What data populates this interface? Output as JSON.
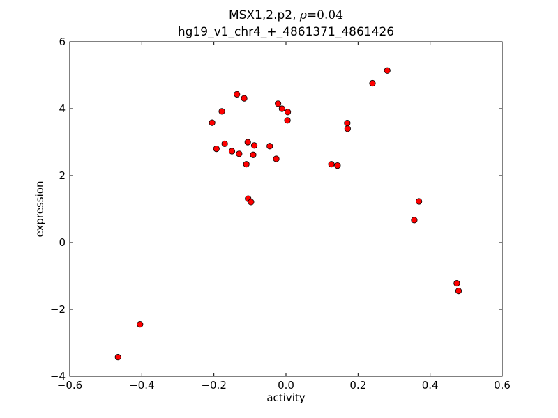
{
  "chart_data": {
    "type": "scatter",
    "title": {
      "line1_prefix": "MSX1,2.p2, ",
      "rho_symbol": "ρ",
      "rho_value": "=0.04",
      "line2": "hg19_v1_chr4_+_4861371_4861426"
    },
    "xlabel": "activity",
    "ylabel": "expression",
    "xlim": [
      -0.6,
      0.6
    ],
    "ylim": [
      -4,
      6
    ],
    "xticks": [
      -0.6,
      -0.4,
      -0.2,
      0.0,
      0.2,
      0.4,
      0.6
    ],
    "xtick_labels": [
      "−0.6",
      "−0.4",
      "−0.2",
      "0.0",
      "0.2",
      "0.4",
      "0.6"
    ],
    "yticks": [
      -4,
      -2,
      0,
      2,
      4,
      6
    ],
    "ytick_labels": [
      "−4",
      "−2",
      "0",
      "2",
      "4",
      "6"
    ],
    "grid": false,
    "marker_color": "#ff0000",
    "marker_edge_color": "#000000",
    "points": [
      {
        "x": -0.466,
        "y": -3.43
      },
      {
        "x": -0.405,
        "y": -2.45
      },
      {
        "x": -0.205,
        "y": 3.58
      },
      {
        "x": -0.193,
        "y": 2.8
      },
      {
        "x": -0.178,
        "y": 3.92
      },
      {
        "x": -0.17,
        "y": 2.95
      },
      {
        "x": -0.15,
        "y": 2.73
      },
      {
        "x": -0.136,
        "y": 4.43
      },
      {
        "x": -0.13,
        "y": 2.65
      },
      {
        "x": -0.116,
        "y": 4.31
      },
      {
        "x": -0.11,
        "y": 2.34
      },
      {
        "x": -0.106,
        "y": 3.0
      },
      {
        "x": -0.105,
        "y": 1.31
      },
      {
        "x": -0.097,
        "y": 1.21
      },
      {
        "x": -0.091,
        "y": 2.62
      },
      {
        "x": -0.088,
        "y": 2.9
      },
      {
        "x": -0.045,
        "y": 2.88
      },
      {
        "x": -0.027,
        "y": 2.5
      },
      {
        "x": -0.022,
        "y": 4.15
      },
      {
        "x": -0.011,
        "y": 4.0
      },
      {
        "x": 0.004,
        "y": 3.65
      },
      {
        "x": 0.005,
        "y": 3.9
      },
      {
        "x": 0.126,
        "y": 2.34
      },
      {
        "x": 0.143,
        "y": 2.3
      },
      {
        "x": 0.17,
        "y": 3.57
      },
      {
        "x": 0.171,
        "y": 3.4
      },
      {
        "x": 0.24,
        "y": 4.76
      },
      {
        "x": 0.281,
        "y": 5.14
      },
      {
        "x": 0.356,
        "y": 0.67
      },
      {
        "x": 0.369,
        "y": 1.23
      },
      {
        "x": 0.474,
        "y": -1.22
      },
      {
        "x": 0.479,
        "y": -1.45
      }
    ]
  }
}
